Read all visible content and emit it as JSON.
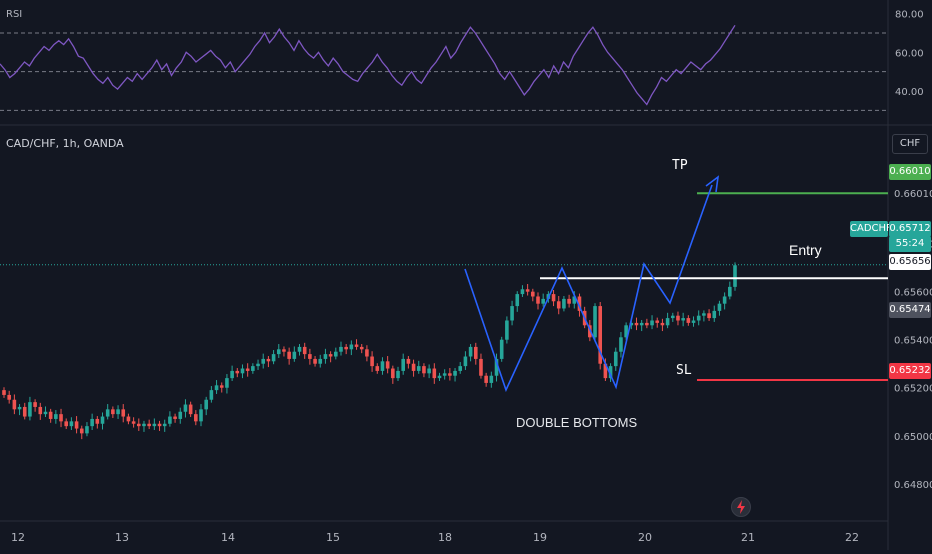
{
  "panels": {
    "rsi_label": "RSI",
    "pair_label": "CAD/CHF, 1h, OANDA",
    "currency_button": "CHF"
  },
  "annotations": {
    "tp": "TP",
    "entry": "Entry",
    "sl": "SL",
    "pattern": "DOUBLE BOTTOMS"
  },
  "price_tags": {
    "tp": "0.66010",
    "symbol": "CADCHF",
    "last": "0.65712",
    "countdown": "55:24",
    "entry": "0.65656",
    "mid": "0.65474",
    "sl": "0.65232"
  },
  "colors": {
    "background": "#131722",
    "up": "#26a69a",
    "down": "#ef5350",
    "rsi_line": "#7e57c2",
    "pattern_line": "#2962ff",
    "tp_line": "#4caf50",
    "sl_line": "#f23645",
    "entry_line": "#ffffff"
  },
  "chart_data": [
    {
      "type": "line",
      "title": "RSI",
      "ylim": [
        25,
        85
      ],
      "yticks": [
        "80.00",
        "60.00",
        "40.00"
      ],
      "levels": [
        70,
        50,
        30
      ],
      "series": [
        {
          "values": [
            54,
            51,
            47,
            49,
            52,
            55,
            53,
            57,
            60,
            63,
            61,
            64,
            66,
            64,
            67,
            63,
            58,
            57,
            53,
            49,
            46,
            44,
            47,
            43,
            41,
            44,
            47,
            45,
            49,
            46,
            49,
            52,
            56,
            51,
            54,
            48,
            52,
            55,
            60,
            58,
            55,
            57,
            59,
            61,
            58,
            56,
            52,
            55,
            50,
            53,
            56,
            59,
            63,
            66,
            70,
            65,
            68,
            72,
            68,
            65,
            61,
            66,
            62,
            59,
            57,
            60,
            56,
            53,
            57,
            54,
            50,
            48,
            46,
            45,
            49,
            52,
            55,
            59,
            55,
            52,
            48,
            45,
            43,
            47,
            50,
            46,
            44,
            48,
            52,
            55,
            59,
            63,
            57,
            60,
            65,
            69,
            73,
            70,
            66,
            62,
            58,
            54,
            49,
            46,
            50,
            46,
            42,
            38,
            41,
            45,
            48,
            51,
            47,
            53,
            49,
            55,
            52,
            58,
            62,
            66,
            70,
            73,
            69,
            64,
            60,
            57,
            54,
            51,
            47,
            43,
            39,
            36,
            33,
            38,
            42,
            47,
            45,
            48,
            51,
            49,
            52,
            55,
            53,
            51,
            54,
            56,
            59,
            62,
            66,
            70,
            74
          ]
        }
      ]
    },
    {
      "type": "candlestick",
      "title": "CAD/CHF, 1h, OANDA",
      "ylim": [
        0.6467,
        0.6619
      ],
      "yticks": [
        "0.66010",
        "0.65800",
        "0.65600",
        "0.65400",
        "0.65200",
        "0.65000",
        "0.64800"
      ],
      "categories": [
        "12",
        "13",
        "14",
        "15",
        "18",
        "19",
        "20",
        "21",
        "22"
      ],
      "close_series": [
        0.6517,
        0.6515,
        0.6511,
        0.6512,
        0.6508,
        0.6514,
        0.6512,
        0.6509,
        0.651,
        0.6507,
        0.6509,
        0.6506,
        0.6504,
        0.6506,
        0.6503,
        0.6501,
        0.6504,
        0.6507,
        0.6505,
        0.6508,
        0.6511,
        0.6509,
        0.6511,
        0.6508,
        0.6506,
        0.6505,
        0.6504,
        0.6505,
        0.6504,
        0.6505,
        0.6504,
        0.6505,
        0.6508,
        0.6507,
        0.651,
        0.6513,
        0.6509,
        0.6506,
        0.6511,
        0.6515,
        0.6519,
        0.6521,
        0.652,
        0.6524,
        0.6527,
        0.6526,
        0.6528,
        0.6527,
        0.6529,
        0.653,
        0.6532,
        0.6531,
        0.6534,
        0.6536,
        0.6535,
        0.6532,
        0.6535,
        0.6537,
        0.6534,
        0.6532,
        0.653,
        0.6532,
        0.6534,
        0.6533,
        0.6535,
        0.6537,
        0.6536,
        0.6538,
        0.6537,
        0.6536,
        0.6533,
        0.6529,
        0.6527,
        0.6531,
        0.6528,
        0.6524,
        0.6527,
        0.6532,
        0.653,
        0.6527,
        0.6529,
        0.6526,
        0.6528,
        0.6524,
        0.6525,
        0.6526,
        0.6525,
        0.6527,
        0.6529,
        0.6533,
        0.6537,
        0.6532,
        0.6525,
        0.6522,
        0.6525,
        0.6532,
        0.654,
        0.6548,
        0.6554,
        0.6559,
        0.6561,
        0.656,
        0.6558,
        0.6555,
        0.6557,
        0.6559,
        0.6556,
        0.6553,
        0.6557,
        0.6555,
        0.6558,
        0.6552,
        0.6546,
        0.6541,
        0.6554,
        0.653,
        0.6524,
        0.6529,
        0.6535,
        0.6541,
        0.6546,
        0.6547,
        0.6546,
        0.6547,
        0.6546,
        0.6548,
        0.6547,
        0.6546,
        0.6549,
        0.655,
        0.6548,
        0.6549,
        0.6547,
        0.6548,
        0.655,
        0.6551,
        0.6549,
        0.6552,
        0.6555,
        0.6558,
        0.6562,
        0.6571
      ]
    }
  ]
}
